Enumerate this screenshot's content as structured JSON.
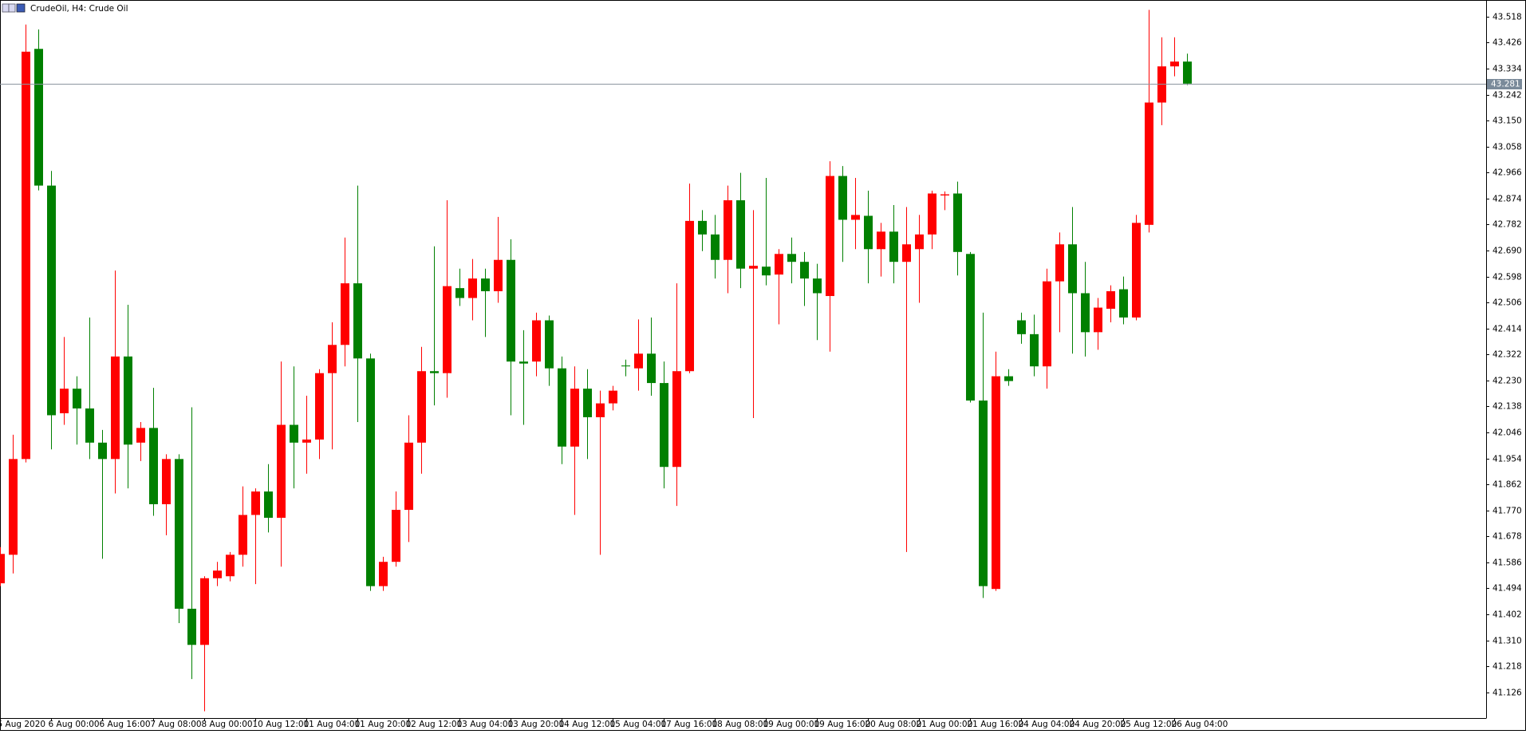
{
  "chart_data": {
    "type": "candlestick",
    "title": "CrudeOil, H4:  Crude Oil",
    "up_color": "#ff0000",
    "down_color": "#008000",
    "last_price": 43.281,
    "ylim": [
      41.035,
      43.577
    ],
    "yticks": [
      43.518,
      43.426,
      43.334,
      43.242,
      {
        "value": 43.15,
        "label": "43.150"
      },
      43.058,
      42.966,
      42.874,
      42.782,
      {
        "value": 42.69,
        "label": "42.690"
      },
      42.598,
      42.506,
      42.414,
      42.322,
      {
        "value": 42.23,
        "label": "42.230"
      },
      42.138,
      42.046,
      41.954,
      41.862,
      {
        "value": 41.77,
        "label": "41.770"
      },
      41.678,
      41.586,
      41.494,
      41.402,
      {
        "value": 41.31,
        "label": "41.310"
      },
      41.218,
      41.126
    ],
    "categories": [
      "5 Aug 2020",
      null,
      null,
      null,
      "6 Aug 00:00",
      null,
      null,
      null,
      "6 Aug 16:00",
      null,
      null,
      null,
      "7 Aug 08:00",
      null,
      null,
      null,
      "8 Aug 00:00",
      null,
      null,
      null,
      "10 Aug 12:00",
      null,
      null,
      null,
      "11 Aug 04:00",
      null,
      null,
      null,
      "11 Aug 20:00",
      null,
      null,
      null,
      "12 Aug 12:00",
      null,
      null,
      null,
      "13 Aug 04:00",
      null,
      null,
      null,
      "13 Aug 20:00",
      null,
      null,
      null,
      "14 Aug 12:00",
      null,
      null,
      null,
      "15 Aug 04:00",
      null,
      null,
      null,
      "17 Aug 16:00",
      null,
      null,
      null,
      "18 Aug 08:00",
      null,
      null,
      null,
      "19 Aug 00:00",
      null,
      null,
      null,
      "19 Aug 16:00",
      null,
      null,
      null,
      "20 Aug 08:00",
      null,
      null,
      null,
      "21 Aug 00:00",
      null,
      null,
      null,
      "21 Aug 16:00",
      null,
      null,
      null,
      "24 Aug 04:00",
      null,
      null,
      null,
      "24 Aug 20:00",
      null,
      null,
      null,
      "25 Aug 12:00",
      null,
      null,
      null,
      "26 Aug 04:00",
      null
    ],
    "open": [
      41.512,
      41.613,
      41.952,
      43.404,
      42.92,
      42.114,
      42.201,
      42.131,
      42.01,
      41.952,
      42.315,
      42.01,
      42.062,
      41.792,
      41.952,
      41.422,
      41.294,
      41.53,
      41.537,
      41.613,
      41.754,
      41.837,
      41.744,
      42.073,
      42.01,
      42.021,
      42.256,
      42.356,
      42.574,
      42.308,
      41.502,
      41.588,
      41.772,
      42.01,
      42.263,
      42.256,
      42.557,
      42.522,
      42.591,
      42.546,
      42.657,
      42.297,
      42.297,
      42.443,
      42.273,
      41.996,
      42.201,
      42.1,
      42.149,
      42.283,
      42.273,
      42.325,
      42.221,
      41.924,
      42.263,
      42.795,
      42.747,
      42.657,
      42.868,
      42.626,
      42.633,
      42.605,
      42.678,
      42.65,
      42.591,
      42.529,
      42.954,
      42.799,
      42.813,
      42.695,
      42.757,
      42.65,
      42.695,
      42.747,
      42.885,
      42.892,
      42.678,
      42.159,
      41.492,
      42.245,
      42.443,
      42.394,
      42.28,
      42.581,
      42.712,
      42.539,
      42.401,
      42.484,
      42.553,
      42.453,
      42.781,
      43.214,
      43.342,
      43.359
    ],
    "high": [
      41.64,
      42.038,
      43.49,
      43.473,
      42.972,
      42.384,
      42.245,
      42.453,
      42.055,
      42.619,
      42.498,
      42.083,
      42.204,
      41.969,
      41.969,
      42.135,
      41.537,
      41.588,
      41.623,
      41.855,
      41.848,
      41.934,
      42.297,
      42.28,
      42.176,
      42.27,
      42.436,
      42.736,
      42.92,
      42.325,
      41.606,
      41.837,
      42.107,
      42.349,
      42.705,
      42.868,
      42.626,
      42.66,
      42.626,
      42.809,
      42.73,
      42.408,
      42.47,
      42.46,
      42.315,
      42.28,
      42.27,
      42.194,
      42.211,
      42.304,
      42.446,
      42.453,
      42.297,
      42.574,
      42.927,
      42.833,
      42.816,
      42.92,
      42.965,
      42.833,
      42.947,
      42.695,
      42.736,
      42.685,
      42.643,
      43.006,
      42.989,
      42.947,
      42.902,
      42.788,
      42.851,
      42.844,
      42.816,
      42.902,
      42.899,
      42.934,
      42.685,
      42.47,
      42.332,
      42.27,
      42.47,
      42.463,
      42.626,
      42.754,
      42.844,
      42.65,
      42.522,
      42.567,
      42.598,
      42.816,
      43.542,
      43.445,
      43.445,
      43.387
    ],
    "low": [
      41.502,
      41.547,
      41.94,
      42.903,
      41.986,
      42.073,
      42.003,
      41.952,
      41.599,
      41.83,
      41.848,
      41.945,
      41.751,
      41.682,
      41.371,
      41.173,
      41.059,
      41.502,
      41.519,
      41.571,
      41.509,
      41.692,
      41.571,
      41.848,
      41.9,
      41.952,
      41.986,
      42.28,
      42.083,
      41.485,
      41.485,
      41.571,
      41.658,
      41.9,
      42.142,
      42.169,
      42.494,
      42.443,
      42.384,
      42.505,
      42.107,
      42.073,
      42.245,
      42.211,
      41.934,
      41.754,
      41.952,
      41.613,
      42.124,
      42.245,
      42.194,
      42.176,
      41.848,
      41.786,
      42.256,
      42.688,
      42.591,
      42.539,
      42.557,
      42.097,
      42.567,
      42.429,
      42.574,
      42.494,
      42.373,
      42.332,
      42.65,
      42.695,
      42.574,
      42.598,
      42.574,
      41.623,
      42.505,
      42.695,
      42.833,
      42.602,
      42.152,
      41.46,
      41.485,
      42.211,
      42.36,
      42.245,
      42.201,
      42.401,
      42.325,
      42.315,
      42.339,
      42.436,
      42.429,
      42.443,
      42.754,
      43.134,
      43.307,
      43.276
    ],
    "close": [
      41.616,
      41.952,
      43.394,
      42.92,
      42.107,
      42.201,
      42.131,
      42.01,
      41.952,
      42.315,
      42.003,
      42.062,
      41.792,
      41.952,
      41.422,
      41.294,
      41.53,
      41.557,
      41.613,
      41.754,
      41.837,
      41.744,
      42.073,
      42.01,
      42.021,
      42.256,
      42.356,
      42.574,
      42.308,
      41.502,
      41.588,
      41.772,
      42.01,
      42.263,
      42.256,
      42.564,
      42.522,
      42.591,
      42.546,
      42.657,
      42.297,
      42.29,
      42.443,
      42.273,
      41.996,
      42.201,
      42.1,
      42.149,
      42.194,
      42.28,
      42.325,
      42.221,
      41.924,
      42.263,
      42.795,
      42.747,
      42.657,
      42.868,
      42.626,
      42.636,
      42.602,
      42.678,
      42.65,
      42.591,
      42.539,
      42.954,
      42.799,
      42.816,
      42.695,
      42.757,
      42.65,
      42.712,
      42.747,
      42.892,
      42.889,
      42.685,
      42.159,
      41.502,
      42.245,
      42.228,
      42.394,
      42.28,
      42.581,
      42.712,
      42.539,
      42.401,
      42.488,
      42.546,
      42.453,
      42.788,
      43.214,
      43.342,
      43.359,
      43.281
    ]
  }
}
